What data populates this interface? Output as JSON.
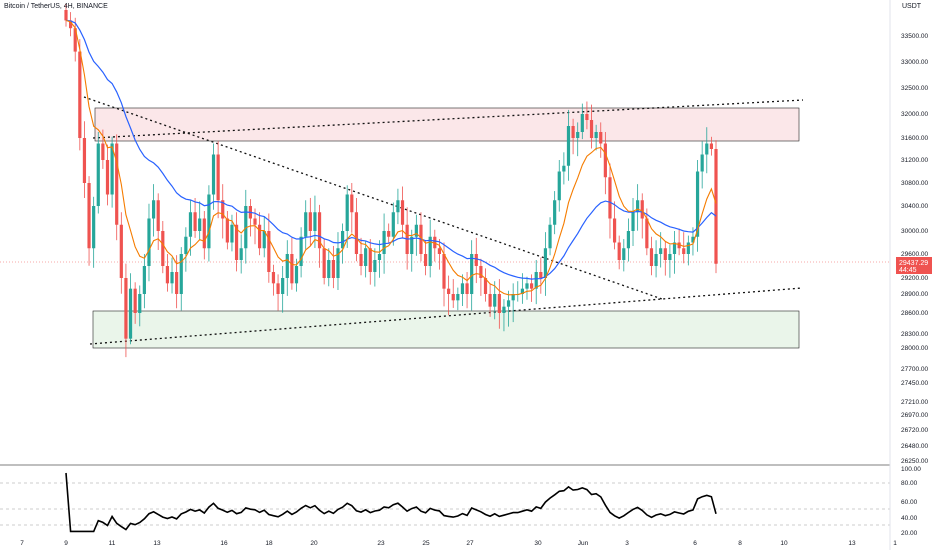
{
  "header": {
    "title": "Bitcoin / TetherUS, 4H, BINANCE",
    "currency": "USDT"
  },
  "price_panel": {
    "price_ticks": [
      "33500.00",
      "33000.00",
      "32500.00",
      "32000.00",
      "31600.00",
      "31200.00",
      "30800.00",
      "30400.00",
      "30000.00",
      "29600.00",
      "29200.00",
      "28900.00",
      "28600.00",
      "28300.00",
      "28000.00",
      "27700.00",
      "27450.00",
      "27210.00",
      "26970.00",
      "26720.00",
      "26480.00",
      "26250.00"
    ],
    "last_price": "29437.29",
    "countdown": "44:45"
  },
  "rsi_panel": {
    "ticks": [
      "100.00",
      "80.00",
      "60.00",
      "40.00",
      "20.00"
    ]
  },
  "time_axis": {
    "labels": [
      "7",
      "9",
      "11",
      "13",
      "16",
      "18",
      "20",
      "23",
      "25",
      "27",
      "30",
      "Jun",
      "3",
      "6",
      "8",
      "10",
      "13",
      "1"
    ]
  },
  "colors": {
    "up": "#26a69a",
    "down": "#ef5350",
    "ma_fast": "#f57c00",
    "ma_slow": "#2962ff",
    "rsi": "#000000"
  },
  "chart_data": {
    "type": "candlestick",
    "timeframe": "4H",
    "y_range": [
      26250,
      33800
    ],
    "price_closes": [
      33800,
      33650,
      33200,
      31600,
      30800,
      29700,
      30400,
      31500,
      31200,
      30600,
      31500,
      30100,
      29200,
      28200,
      29000,
      28600,
      28900,
      29400,
      30200,
      30500,
      30000,
      29400,
      29100,
      29300,
      28900,
      29600,
      29900,
      30300,
      30000,
      30200,
      29700,
      30600,
      31300,
      30500,
      30200,
      29800,
      30100,
      29500,
      29700,
      30400,
      30200,
      30100,
      29700,
      30000,
      29300,
      29100,
      28900,
      29200,
      29600,
      29100,
      29400,
      29900,
      30300,
      30000,
      30300,
      29700,
      29200,
      29500,
      29200,
      29700,
      30000,
      30600,
      30300,
      29600,
      29400,
      29700,
      29300,
      29500,
      29600,
      30000,
      29900,
      30300,
      30500,
      30100,
      29600,
      29900,
      30100,
      29600,
      29400,
      29900,
      29700,
      29600,
      29000,
      28900,
      28800,
      28900,
      29100,
      28900,
      29600,
      29400,
      29200,
      28900,
      28700,
      28900,
      28600,
      28700,
      28800,
      28900,
      28900,
      29000,
      29100,
      29000,
      29300,
      29200,
      29700,
      30100,
      30500,
      31000,
      31100,
      31800,
      31600,
      31700,
      32000,
      31900,
      31600,
      31700,
      31500,
      30900,
      30200,
      29800,
      29500,
      29700,
      30000,
      30300,
      30500,
      30200,
      29700,
      29400,
      29600,
      29700,
      29500,
      29600,
      29800,
      29700,
      29600,
      29800,
      29900,
      31000,
      31300,
      31500,
      31400,
      29437
    ],
    "ma_fast_label": "fast moving average (orange)",
    "ma_slow_label": "slow moving average (blue)",
    "resistance_zone": [
      31550,
      32150
    ],
    "support_zone": [
      28050,
      28650
    ],
    "rsi": {
      "range": [
        20,
        100
      ],
      "levels": [
        80,
        60,
        40
      ],
      "last": 44
    }
  }
}
